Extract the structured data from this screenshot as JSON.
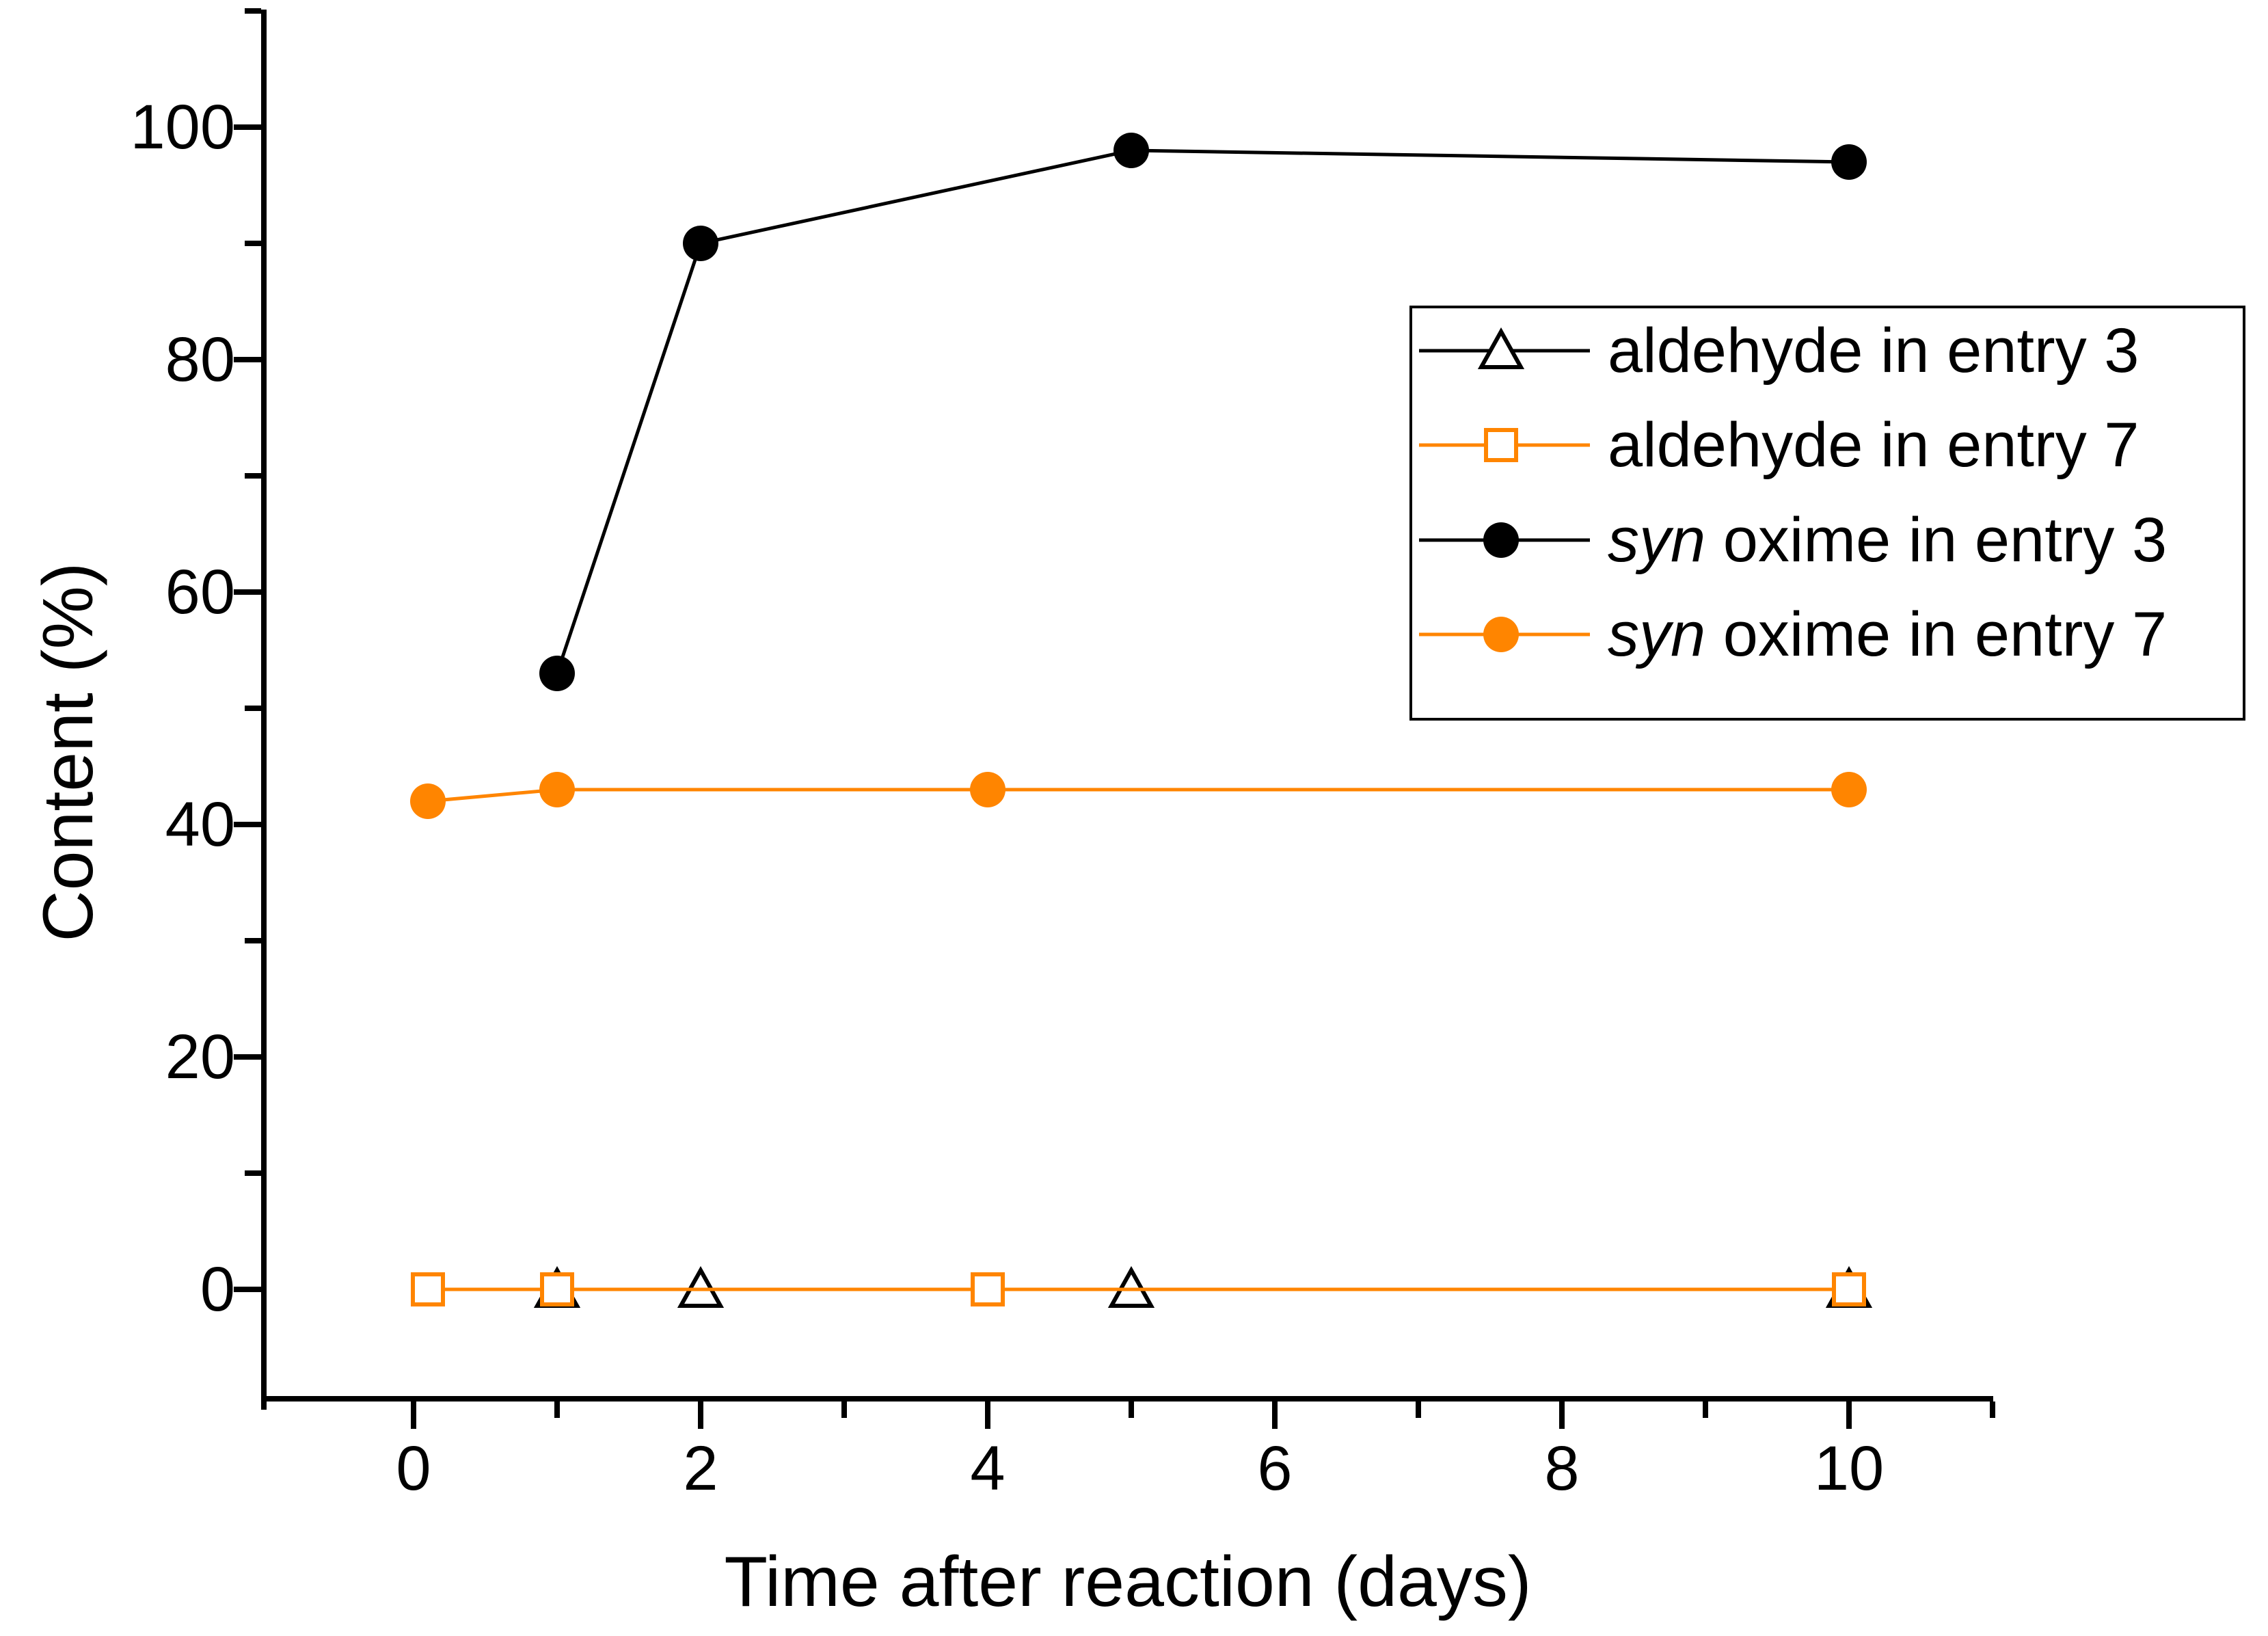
{
  "figure": {
    "background": "#ffffff",
    "colors": {
      "black": "#000000",
      "orange": "#FF8500"
    }
  },
  "chart_data": {
    "type": "line",
    "title": "",
    "xlabel": "Time after reaction (days)",
    "ylabel": "Content (%)",
    "xlim": [
      -1,
      11
    ],
    "ylim": [
      -10,
      110
    ],
    "grid": false,
    "legend_position": "upper right",
    "x_axis": {
      "major_ticks": [
        0,
        2,
        4,
        6,
        8,
        10
      ],
      "minor_ticks": [
        1,
        3,
        5,
        7,
        9,
        11
      ],
      "tick_labels": [
        "0",
        "2",
        "4",
        "6",
        "8",
        "10"
      ]
    },
    "y_axis": {
      "major_ticks": [
        0,
        20,
        40,
        60,
        80,
        100
      ],
      "minor_ticks": [
        10,
        30,
        50,
        70,
        90,
        110
      ],
      "tick_labels": [
        "0",
        "20",
        "40",
        "60",
        "80",
        "100"
      ]
    },
    "series": [
      {
        "name": "aldehyde in entry 3",
        "label_parts": [
          {
            "text": "aldehyde in entry 3",
            "italic": false
          }
        ],
        "marker": "triangle-open",
        "color": "#000000",
        "x": [
          1,
          2,
          5,
          10
        ],
        "y": [
          0,
          0,
          0,
          0
        ]
      },
      {
        "name": "aldehyde in entry 7",
        "label_parts": [
          {
            "text": "aldehyde in entry 7",
            "italic": false
          }
        ],
        "marker": "square-open",
        "color": "#FF8500",
        "x": [
          0.1,
          1,
          4,
          10
        ],
        "y": [
          0,
          0,
          0,
          0
        ]
      },
      {
        "name": "syn oxime in entry 3",
        "label_parts": [
          {
            "text": "syn",
            "italic": true
          },
          {
            "text": " oxime in entry 3",
            "italic": false
          }
        ],
        "marker": "circle-filled",
        "color": "#000000",
        "x": [
          1,
          2,
          5,
          10
        ],
        "y": [
          53,
          90,
          98,
          97
        ]
      },
      {
        "name": "syn oxime in entry 7",
        "label_parts": [
          {
            "text": "syn",
            "italic": true
          },
          {
            "text": " oxime in entry 7",
            "italic": false
          }
        ],
        "marker": "circle-filled",
        "color": "#FF8500",
        "x": [
          0.1,
          1,
          4,
          10
        ],
        "y": [
          42,
          43,
          43,
          43
        ]
      }
    ]
  }
}
